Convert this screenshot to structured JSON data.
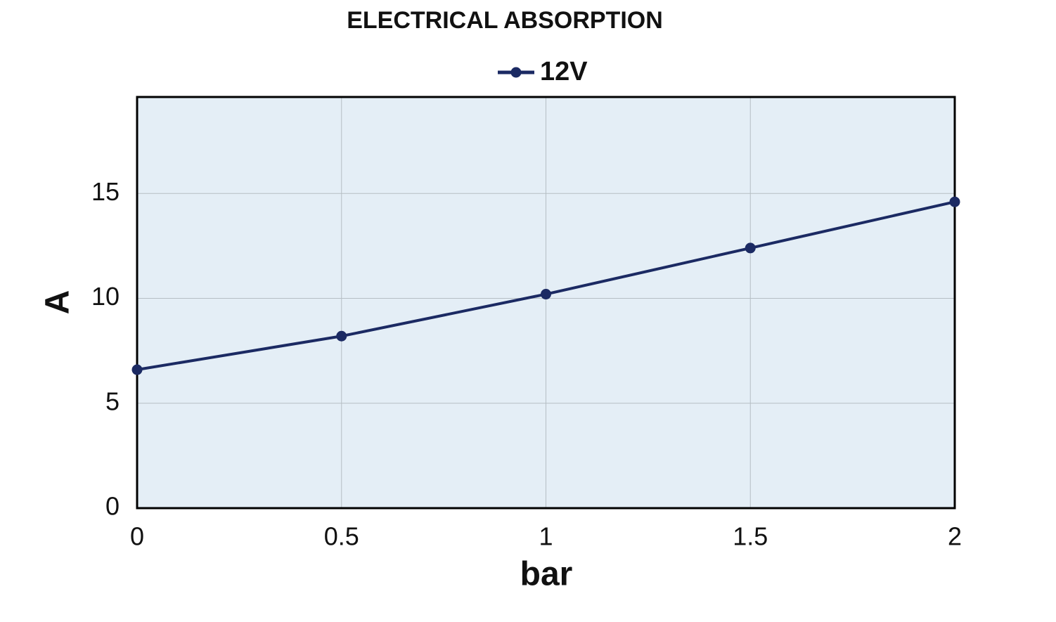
{
  "chart_data": {
    "type": "line",
    "title": "ELECTRICAL ABSORPTION",
    "x_label": "bar",
    "y_label": "A",
    "x": [
      0,
      0.5,
      1,
      1.5,
      2
    ],
    "series": [
      {
        "name": "12V",
        "color": "#1b2a63",
        "values": [
          6.6,
          8.2,
          10.2,
          12.4,
          14.6
        ]
      }
    ],
    "xlim": [
      0,
      2
    ],
    "xticks": [
      0,
      0.5,
      1,
      1.5,
      2
    ],
    "ylim": [
      0,
      19.6
    ],
    "yticks": [
      0,
      5,
      10,
      15
    ],
    "grid": true,
    "legend": "top"
  }
}
